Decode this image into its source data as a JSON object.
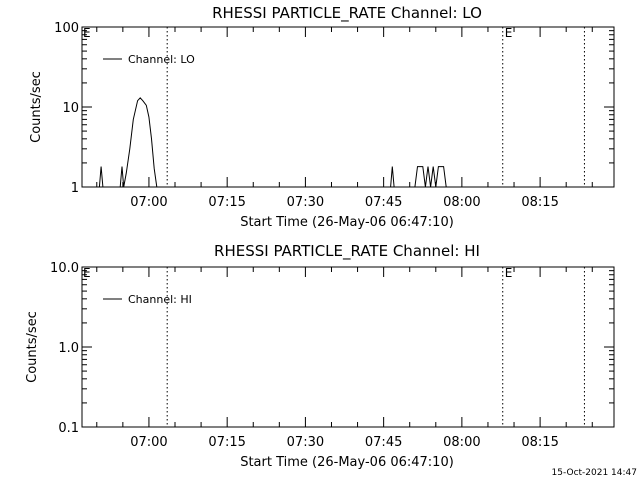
{
  "chart_data": [
    {
      "type": "line",
      "title": "RHESSI PARTICLE_RATE Channel: LO",
      "xlabel": "Start Time (26-May-06 06:47:10)",
      "ylabel": "Counts/sec",
      "y_scale": "log",
      "ylim": [
        1,
        100
      ],
      "y_ticks": [
        1,
        10,
        100
      ],
      "y_tick_labels": [
        "1",
        "10",
        "100"
      ],
      "xlim": [
        "06:47:10",
        "08:29:10"
      ],
      "x_ticks": [
        "07:00",
        "07:15",
        "07:30",
        "07:45",
        "08:00",
        "08:15"
      ],
      "grid": false,
      "legend": {
        "position": "top-left",
        "entries": [
          "Channel: LO"
        ]
      },
      "vertical_markers": [
        {
          "time": "07:03:30",
          "label": ""
        },
        {
          "time": "08:07:50",
          "label": "E"
        },
        {
          "time": "08:23:30",
          "label": ""
        }
      ],
      "start_marker_label": "E",
      "series": [
        {
          "name": "Channel: LO",
          "points": [
            [
              "06:50:30",
              1
            ],
            [
              "06:50:50",
              1.8
            ],
            [
              "06:51:10",
              1
            ],
            [
              "06:54:30",
              1
            ],
            [
              "06:54:50",
              1.8
            ],
            [
              "06:55:10",
              1
            ],
            [
              "06:55:40",
              1.5
            ],
            [
              "06:56:20",
              3
            ],
            [
              "06:57:00",
              7
            ],
            [
              "06:57:50",
              12
            ],
            [
              "06:58:20",
              13
            ],
            [
              "06:58:50",
              12
            ],
            [
              "06:59:30",
              10.5
            ],
            [
              "07:00:00",
              7.5
            ],
            [
              "07:00:30",
              4
            ],
            [
              "07:01:00",
              1.7
            ],
            [
              "07:01:30",
              1
            ],
            [
              "07:46:20",
              1
            ],
            [
              "07:46:40",
              1.8
            ],
            [
              "07:47:00",
              1
            ],
            [
              "07:51:00",
              1
            ],
            [
              "07:51:30",
              1.8
            ],
            [
              "07:52:30",
              1.8
            ],
            [
              "07:53:00",
              1
            ],
            [
              "07:53:30",
              1.8
            ],
            [
              "07:54:00",
              1
            ],
            [
              "07:54:30",
              1.8
            ],
            [
              "07:55:00",
              1
            ],
            [
              "07:55:30",
              1.8
            ],
            [
              "07:56:30",
              1.8
            ],
            [
              "07:57:00",
              1
            ]
          ]
        }
      ]
    },
    {
      "type": "line",
      "title": "RHESSI PARTICLE_RATE Channel: HI",
      "xlabel": "Start Time (26-May-06 06:47:10)",
      "ylabel": "Counts/sec",
      "y_scale": "log",
      "ylim": [
        0.1,
        10
      ],
      "y_ticks": [
        0.1,
        1,
        10
      ],
      "y_tick_labels": [
        "0.1",
        "1.0",
        "10.0"
      ],
      "xlim": [
        "06:47:10",
        "08:29:10"
      ],
      "x_ticks": [
        "07:00",
        "07:15",
        "07:30",
        "07:45",
        "08:00",
        "08:15"
      ],
      "grid": false,
      "legend": {
        "position": "top-left",
        "entries": [
          "Channel: HI"
        ]
      },
      "vertical_markers": [
        {
          "time": "07:03:30",
          "label": ""
        },
        {
          "time": "08:07:50",
          "label": "E"
        },
        {
          "time": "08:23:30",
          "label": ""
        }
      ],
      "start_marker_label": "E",
      "series": [
        {
          "name": "Channel: HI",
          "points": []
        }
      ]
    }
  ],
  "footer": {
    "timestamp": "15-Oct-2021 14:47"
  }
}
